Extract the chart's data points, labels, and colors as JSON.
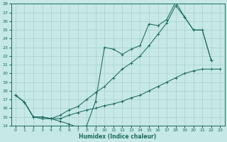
{
  "xlabel": "Humidex (Indice chaleur)",
  "ylabel": "",
  "bg_color": "#c6e8e6",
  "grid_color": "#a8d0ce",
  "line_color": "#1a6b60",
  "xlim": [
    -0.5,
    23.5
  ],
  "ylim": [
    14,
    28
  ],
  "xticks": [
    0,
    1,
    2,
    3,
    4,
    5,
    6,
    7,
    8,
    9,
    10,
    11,
    12,
    13,
    14,
    15,
    16,
    17,
    18,
    19,
    20,
    21,
    22,
    23
  ],
  "yticks": [
    14,
    15,
    16,
    17,
    18,
    19,
    20,
    21,
    22,
    23,
    24,
    25,
    26,
    27,
    28
  ],
  "series1_x": [
    0,
    1,
    2,
    3,
    4,
    5,
    6,
    7,
    8,
    9,
    10,
    11,
    12,
    13,
    14,
    15,
    16,
    17,
    18,
    19,
    20,
    21,
    22
  ],
  "series1_y": [
    17.5,
    16.7,
    15.0,
    14.8,
    14.8,
    14.5,
    14.2,
    13.8,
    14.0,
    16.8,
    23.0,
    22.8,
    22.2,
    22.8,
    23.2,
    25.7,
    25.5,
    26.2,
    28.2,
    26.5,
    25.0,
    25.0,
    21.5
  ],
  "series2_x": [
    0,
    1,
    2,
    3,
    4,
    5,
    6,
    7,
    8,
    9,
    10,
    11,
    12,
    13,
    14,
    15,
    16,
    17,
    18,
    19,
    20,
    21,
    22,
    23
  ],
  "series2_y": [
    17.5,
    16.7,
    15.0,
    15.0,
    14.8,
    14.8,
    15.2,
    15.5,
    15.8,
    16.0,
    16.3,
    16.5,
    16.8,
    17.2,
    17.5,
    18.0,
    18.5,
    19.0,
    19.5,
    20.0,
    20.3,
    20.5,
    20.5,
    20.5
  ],
  "series3_x": [
    0,
    1,
    2,
    3,
    4,
    5,
    6,
    7,
    8,
    9,
    10,
    11,
    12,
    13,
    14,
    15,
    16,
    17,
    18,
    19,
    20,
    21,
    22
  ],
  "series3_y": [
    17.5,
    16.7,
    15.0,
    15.0,
    14.8,
    15.2,
    15.8,
    16.2,
    17.0,
    17.8,
    18.5,
    19.5,
    20.5,
    21.2,
    22.0,
    23.2,
    24.5,
    25.8,
    27.8,
    26.5,
    25.0,
    25.0,
    21.5
  ]
}
